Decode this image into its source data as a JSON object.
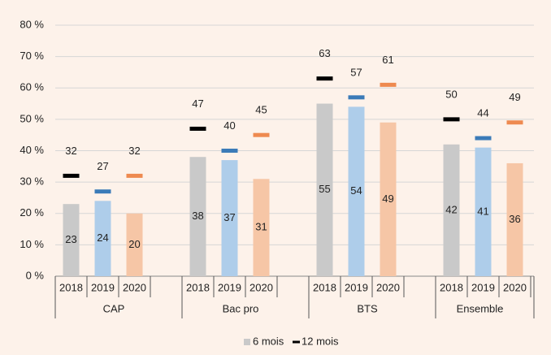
{
  "chart_data": {
    "type": "bar",
    "groups": [
      "CAP",
      "Bac pro",
      "BTS",
      "Ensemble"
    ],
    "categories": [
      "2018",
      "2019",
      "2020",
      "2018",
      "2019",
      "2020",
      "2018",
      "2019",
      "2020",
      "2018",
      "2019",
      "2020"
    ],
    "series": [
      {
        "name": "6 mois",
        "kind": "bar",
        "color": "#c9c9c9",
        "point_colors": [
          "#c9c9c9",
          "#aecdea",
          "#f6c6a6",
          "#c9c9c9",
          "#aecdea",
          "#f6c6a6",
          "#c9c9c9",
          "#aecdea",
          "#f6c6a6",
          "#c9c9c9",
          "#aecdea",
          "#f6c6a6"
        ],
        "values": [
          23,
          24,
          20,
          38,
          37,
          31,
          55,
          54,
          49,
          42,
          41,
          36
        ]
      },
      {
        "name": "12 mois",
        "kind": "marker",
        "color": "#000000",
        "point_colors": [
          "#000000",
          "#3b7bb8",
          "#ee8a50",
          "#000000",
          "#3b7bb8",
          "#ee8a50",
          "#000000",
          "#3b7bb8",
          "#ee8a50",
          "#000000",
          "#3b7bb8",
          "#ee8a50"
        ],
        "values": [
          32,
          27,
          32,
          47,
          40,
          45,
          63,
          57,
          61,
          50,
          44,
          49
        ]
      }
    ],
    "ylim": [
      0,
      80
    ],
    "yticks": [
      {
        "value": 0,
        "label": "0 %"
      },
      {
        "value": 10,
        "label": "10 %"
      },
      {
        "value": 20,
        "label": "20 %"
      },
      {
        "value": 30,
        "label": "30 %"
      },
      {
        "value": 40,
        "label": "40 %"
      },
      {
        "value": 50,
        "label": "50 %"
      },
      {
        "value": 60,
        "label": "60 %"
      },
      {
        "value": 70,
        "label": "70 %"
      },
      {
        "value": 80,
        "label": "80 %"
      }
    ],
    "grid": true,
    "legend": "bottom"
  }
}
